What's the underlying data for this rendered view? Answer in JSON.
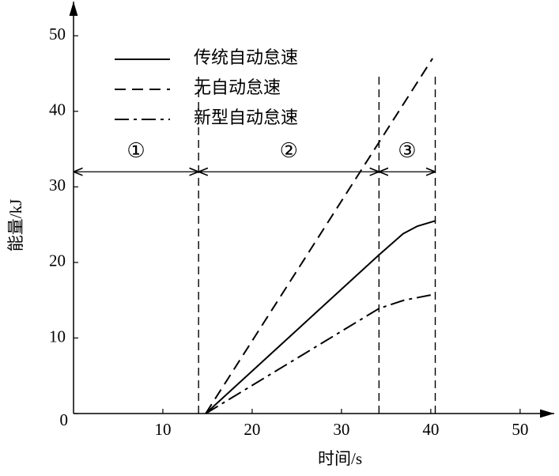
{
  "chart_data": {
    "type": "line",
    "xlabel": "时间/s",
    "ylabel": "能量/kJ",
    "xlim": [
      0,
      54
    ],
    "ylim": [
      0,
      54
    ],
    "xticks": [
      10,
      20,
      30,
      40,
      50
    ],
    "yticks": [
      0,
      10,
      20,
      30,
      40,
      50
    ],
    "grid": false,
    "legend": "upper left",
    "series": [
      {
        "name": "传统自动怠速",
        "color": "#000000",
        "dash": "solid",
        "x": [
          14.8,
          34.2,
          36.9,
          38.5,
          40.5
        ],
        "values": [
          0,
          21,
          23.8,
          24.8,
          25.5
        ]
      },
      {
        "name": "无自动怠速",
        "color": "#000000",
        "dash": "dashed",
        "x": [
          14.8,
          40.2
        ],
        "values": [
          0,
          47
        ]
      },
      {
        "name": "新型自动怠速",
        "color": "#000000",
        "dash": "dashdot",
        "x": [
          14.8,
          34.2,
          37,
          40.5
        ],
        "values": [
          0,
          13.9,
          15,
          15.8
        ]
      }
    ],
    "boundaries": [
      14,
      34.2,
      40.5
    ],
    "regions": [
      {
        "label": "①",
        "from": 0,
        "to": 14
      },
      {
        "label": "②",
        "from": 14,
        "to": 34.2
      },
      {
        "label": "③",
        "from": 34.2,
        "to": 40.5
      }
    ],
    "region_arrow_y": 32
  }
}
